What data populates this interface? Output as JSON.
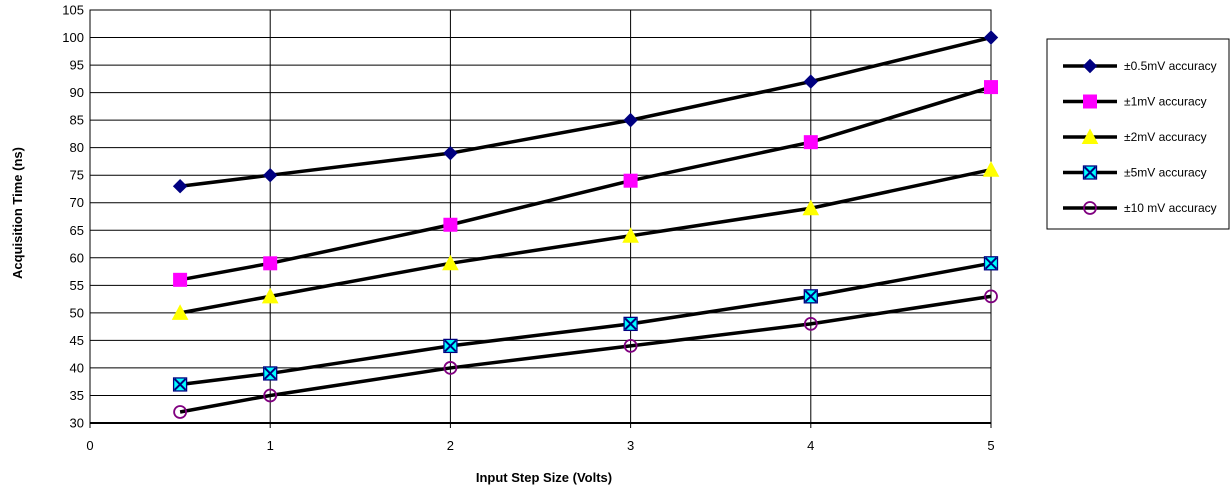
{
  "chart_data": {
    "type": "line",
    "xlabel": "Input Step Size (Volts)",
    "ylabel": "Acquisition Time (ns)",
    "xlim": [
      0,
      5
    ],
    "ylim": [
      30,
      105
    ],
    "x_ticks": [
      "0",
      "1",
      "2",
      "3",
      "4",
      "5"
    ],
    "y_ticks": [
      "30",
      "35",
      "40",
      "45",
      "50",
      "55",
      "60",
      "65",
      "70",
      "75",
      "80",
      "85",
      "90",
      "95",
      "100",
      "105"
    ],
    "grid": true,
    "legend_position": "right",
    "x": [
      0.5,
      1,
      2,
      3,
      4,
      5
    ],
    "series": [
      {
        "name": "±0.5mV accuracy",
        "values": [
          73,
          75,
          79,
          85,
          92,
          100
        ],
        "marker": "diamond",
        "marker_color": "#000080",
        "marker_stroke": "#000080"
      },
      {
        "name": "±1mV accuracy",
        "values": [
          56,
          59,
          66,
          74,
          81,
          91
        ],
        "marker": "square",
        "marker_color": "#FF00FF",
        "marker_stroke": "#FF00FF"
      },
      {
        "name": "±2mV accuracy",
        "values": [
          50,
          53,
          59,
          64,
          69,
          76
        ],
        "marker": "triangle",
        "marker_color": "#FFFF00",
        "marker_stroke": "#FFFF00"
      },
      {
        "name": "±5mV accuracy",
        "values": [
          37,
          39,
          44,
          48,
          53,
          59
        ],
        "marker": "x-square",
        "marker_color": "#00FFFF",
        "marker_stroke": "#000080"
      },
      {
        "name": "±10 mV accuracy",
        "values": [
          32,
          35,
          40,
          44,
          48,
          53
        ],
        "marker": "circle",
        "marker_color": "none",
        "marker_stroke": "#800080"
      }
    ],
    "line_color": "#000000"
  }
}
